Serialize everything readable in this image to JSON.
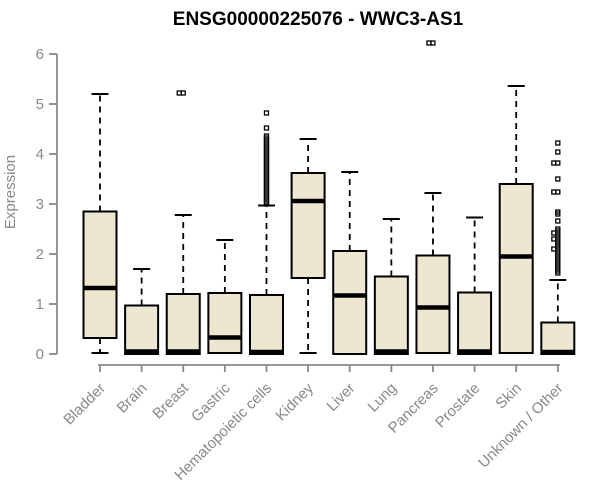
{
  "page": {
    "background": "#FFFFFF"
  },
  "chart_data": {
    "type": "boxplot",
    "title": "ENSG00000225076 - WWC3-AS1",
    "ylabel": "Expression",
    "xlabel": "",
    "ylim": [
      0,
      6
    ],
    "yticks": [
      0,
      1,
      2,
      3,
      4,
      5,
      6
    ],
    "grid": false,
    "legend": "none",
    "colors": {
      "box_fill": "#EDE7D1",
      "box_border": "#000000",
      "median": "#000000",
      "whisker": "#000000",
      "outlier": "#000000",
      "axis": "#898989",
      "tick_label": "#898989",
      "title": "#000000",
      "background": "#FFFFFF"
    },
    "categories": [
      "Bladder",
      "Brain",
      "Breast",
      "Gastric",
      "Hematopoietic cells",
      "Kidney",
      "Liver",
      "Lung",
      "Pancreas",
      "Prostate",
      "Skin",
      "Unknown / Other"
    ],
    "boxes": [
      {
        "category": "Bladder",
        "low": 0.02,
        "q1": 0.32,
        "median": 1.32,
        "q3": 2.85,
        "high": 5.2,
        "outliers": []
      },
      {
        "category": "Brain",
        "low": 0,
        "q1": 0,
        "median": 0.05,
        "q3": 0.97,
        "high": 1.7,
        "outliers": []
      },
      {
        "category": "Breast",
        "low": 0,
        "q1": 0,
        "median": 0.05,
        "q3": 1.2,
        "high": 2.78,
        "outliers": [
          5.22,
          5.22
        ]
      },
      {
        "category": "Gastric",
        "low": 0,
        "q1": 0.02,
        "median": 0.33,
        "q3": 1.22,
        "high": 2.28,
        "outliers": []
      },
      {
        "category": "Hematopoietic cells",
        "low": 0,
        "q1": 0,
        "median": 0.04,
        "q3": 1.18,
        "high": 2.97,
        "outliers": [
          4.82,
          4.52,
          4.36,
          4.32,
          4.28,
          4.24,
          4.2,
          4.16,
          4.12,
          4.08,
          4.04,
          4.0,
          3.96,
          3.92,
          3.88,
          3.84,
          3.8,
          3.76,
          3.72,
          3.68,
          3.64,
          3.6,
          3.56,
          3.52,
          3.48,
          3.44,
          3.4,
          3.36,
          3.32,
          3.28,
          3.24,
          3.2,
          3.16,
          3.12,
          3.08,
          3.04,
          3.0
        ]
      },
      {
        "category": "Kidney",
        "low": 0.02,
        "q1": 1.52,
        "median": 3.06,
        "q3": 3.62,
        "high": 4.3,
        "outliers": []
      },
      {
        "category": "Liver",
        "low": 0,
        "q1": 0,
        "median": 1.17,
        "q3": 2.06,
        "high": 3.64,
        "outliers": []
      },
      {
        "category": "Lung",
        "low": 0,
        "q1": 0,
        "median": 0.05,
        "q3": 1.55,
        "high": 2.7,
        "outliers": []
      },
      {
        "category": "Pancreas",
        "low": 0,
        "q1": 0.02,
        "median": 0.93,
        "q3": 1.97,
        "high": 3.22,
        "outliers": [
          6.22,
          6.22
        ]
      },
      {
        "category": "Prostate",
        "low": 0,
        "q1": 0,
        "median": 0.05,
        "q3": 1.23,
        "high": 2.73,
        "outliers": []
      },
      {
        "category": "Skin",
        "low": 0,
        "q1": 0.02,
        "median": 1.95,
        "q3": 3.4,
        "high": 5.36,
        "outliers": []
      },
      {
        "category": "Unknown / Other",
        "low": 0,
        "q1": 0,
        "median": 0.04,
        "q3": 0.63,
        "high": 1.48,
        "outliers": [
          4.22,
          4.04,
          3.82,
          3.82,
          3.5,
          3.24,
          3.24,
          2.84,
          2.8,
          2.66,
          2.5,
          2.46,
          2.42,
          2.42,
          2.38,
          2.34,
          2.3,
          2.3,
          2.26,
          2.22,
          2.18,
          2.14,
          2.1,
          2.1,
          2.06,
          2.02,
          1.98,
          1.94,
          1.9,
          1.86,
          1.82,
          1.78,
          1.74,
          1.7,
          1.66,
          1.62
        ]
      }
    ]
  }
}
